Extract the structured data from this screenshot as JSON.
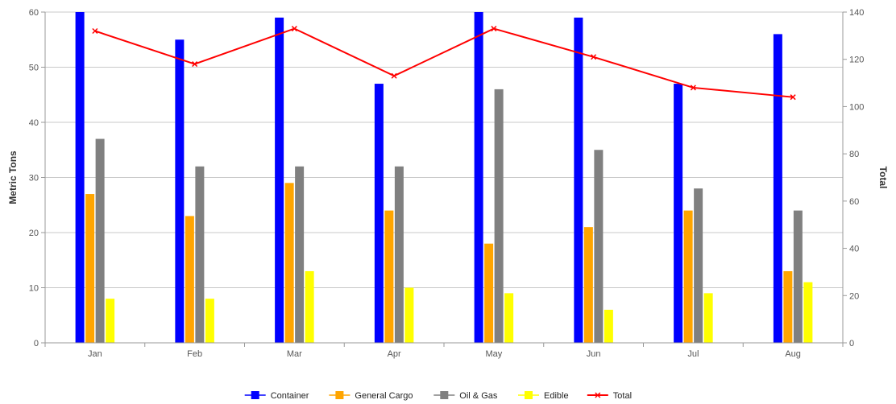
{
  "chart_data": {
    "type": "bar",
    "categories": [
      "Jan",
      "Feb",
      "Mar",
      "Apr",
      "May",
      "Jun",
      "Jul",
      "Aug"
    ],
    "ylabel": "Metric Tons",
    "y2label": "Total",
    "ylim": [
      0,
      60
    ],
    "y2lim": [
      0,
      140
    ],
    "yticks": [
      "0",
      "10",
      "20",
      "30",
      "40",
      "50",
      "60"
    ],
    "y2ticks": [
      "0",
      "20",
      "40",
      "60",
      "80",
      "100",
      "120",
      "140"
    ],
    "grid": true,
    "legend_position": "bottom-center",
    "series": [
      {
        "name": "Container",
        "type": "bar",
        "axis": "left",
        "color": "#0000ff",
        "values": [
          60,
          55,
          59,
          47,
          60,
          59,
          47,
          56
        ]
      },
      {
        "name": "General Cargo",
        "type": "bar",
        "axis": "left",
        "color": "#ffa500",
        "values": [
          27,
          23,
          29,
          24,
          18,
          21,
          24,
          13
        ]
      },
      {
        "name": "Oil & Gas",
        "type": "bar",
        "axis": "left",
        "color": "#808080",
        "values": [
          37,
          32,
          32,
          32,
          46,
          35,
          28,
          24
        ]
      },
      {
        "name": "Edible",
        "type": "bar",
        "axis": "left",
        "color": "#ffff00",
        "values": [
          8,
          8,
          13,
          10,
          9,
          6,
          9,
          11
        ]
      },
      {
        "name": "Total",
        "type": "line",
        "axis": "right",
        "color": "#ff0000",
        "values": [
          132,
          118,
          133,
          113,
          133,
          121,
          108,
          104
        ]
      }
    ]
  }
}
